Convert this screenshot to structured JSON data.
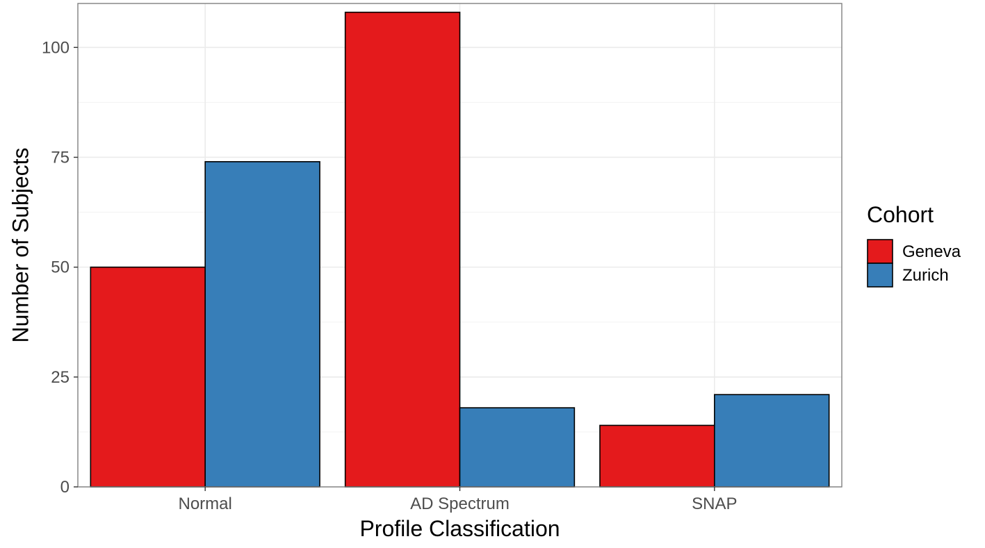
{
  "chart_data": {
    "type": "bar",
    "title": "",
    "xlabel": "Profile Classification",
    "ylabel": "Number of Subjects",
    "categories": [
      "Normal",
      "AD Spectrum",
      "SNAP"
    ],
    "series": [
      {
        "name": "Geneva",
        "color": "#e41a1c",
        "values": [
          50,
          108,
          14
        ]
      },
      {
        "name": "Zurich",
        "color": "#377eb8",
        "values": [
          74,
          18,
          21
        ]
      }
    ],
    "ylim": [
      0,
      110
    ],
    "yticks": [
      0,
      25,
      50,
      75,
      100
    ],
    "ytick_labels": [
      "0",
      "25",
      "50",
      "75",
      "100"
    ],
    "grid": true,
    "legend": {
      "title": "Cohort",
      "position": "right"
    }
  }
}
